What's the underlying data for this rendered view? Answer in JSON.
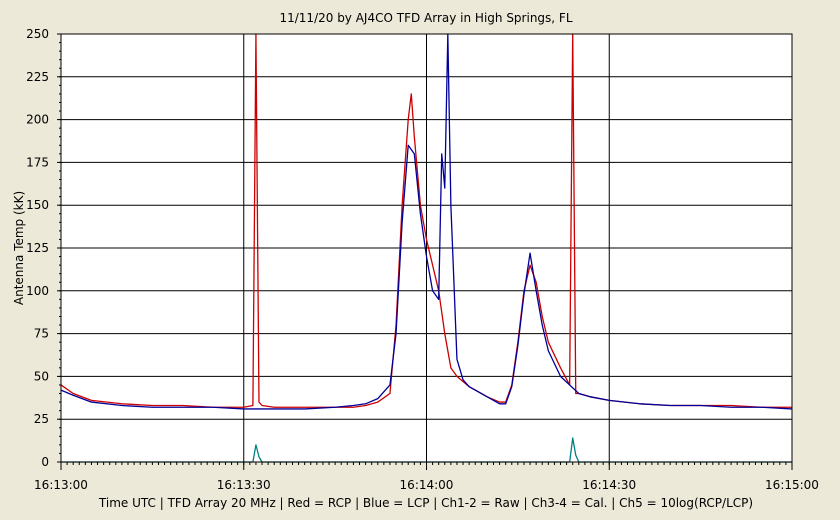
{
  "chart_data": {
    "type": "line",
    "title": "11/11/20  by  AJ4CO TFD Array  in  High Springs, FL",
    "ylabel": "Antenna Temp (kK)",
    "xlabel": "Time UTC | TFD Array 20 MHz | Red = RCP | Blue = LCP | Ch1-2 = Raw | Ch3-4 = Cal. | Ch5 = 10log(RCP/LCP)",
    "xlim": [
      "16:13:00",
      "16:15:00"
    ],
    "ylim": [
      0,
      250
    ],
    "x_ticks": [
      "16:13:00",
      "16:13:30",
      "16:14:00",
      "16:14:30",
      "16:15:00"
    ],
    "y_ticks": [
      "0",
      "25",
      "50",
      "75",
      "100",
      "125",
      "150",
      "175",
      "200",
      "225",
      "250"
    ],
    "grid": true,
    "background_color": "#ffffff",
    "series": [
      {
        "color": "#cc0000",
        "x": [
          "16:13:00",
          "16:13:02",
          "16:13:05",
          "16:13:10",
          "16:13:15",
          "16:13:20",
          "16:13:25",
          "16:13:30",
          "16:13:31.5",
          "16:13:32",
          "16:13:32.5",
          "16:13:33",
          "16:13:35",
          "16:13:40",
          "16:13:45",
          "16:13:48",
          "16:13:50",
          "16:13:52",
          "16:13:54",
          "16:13:55",
          "16:13:56",
          "16:13:57",
          "16:13:57.5",
          "16:13:58",
          "16:13:59",
          "16:14:00",
          "16:14:01",
          "16:14:02",
          "16:14:03",
          "16:14:04",
          "16:14:05",
          "16:14:06",
          "16:14:07",
          "16:14:08",
          "16:14:10",
          "16:14:12",
          "16:14:13",
          "16:14:14",
          "16:14:15",
          "16:14:16",
          "16:14:17",
          "16:14:18",
          "16:14:19",
          "16:14:20",
          "16:14:22",
          "16:14:23.5",
          "16:14:24",
          "16:14:24.5",
          "16:14:25",
          "16:14:27",
          "16:14:30",
          "16:14:35",
          "16:14:40",
          "16:14:45",
          "16:14:50",
          "16:14:55",
          "16:15:00"
        ],
        "values": [
          45,
          40,
          36,
          34,
          33,
          33,
          32,
          32,
          33,
          250,
          35,
          33,
          32,
          32,
          32,
          32,
          33,
          35,
          40,
          80,
          150,
          200,
          215,
          190,
          150,
          130,
          115,
          100,
          75,
          55,
          50,
          47,
          44,
          42,
          38,
          35,
          35,
          45,
          70,
          100,
          115,
          105,
          85,
          70,
          55,
          45,
          250,
          40,
          40,
          38,
          36,
          34,
          33,
          33,
          33,
          32,
          32
        ]
      },
      {
        "color": "#000099",
        "x": [
          "16:13:00",
          "16:13:02",
          "16:13:05",
          "16:13:10",
          "16:13:15",
          "16:13:20",
          "16:13:25",
          "16:13:30",
          "16:13:35",
          "16:13:40",
          "16:13:45",
          "16:13:48",
          "16:13:50",
          "16:13:52",
          "16:13:54",
          "16:13:55",
          "16:13:56",
          "16:13:57",
          "16:13:58",
          "16:13:59",
          "16:14:00",
          "16:14:01",
          "16:14:02",
          "16:14:02.5",
          "16:14:03",
          "16:14:03.5",
          "16:14:04",
          "16:14:05",
          "16:14:06",
          "16:14:07",
          "16:14:08",
          "16:14:10",
          "16:14:12",
          "16:14:13",
          "16:14:14",
          "16:14:15",
          "16:14:16",
          "16:14:17",
          "16:14:18",
          "16:14:19",
          "16:14:20",
          "16:14:22",
          "16:14:25",
          "16:14:27",
          "16:14:30",
          "16:14:35",
          "16:14:40",
          "16:14:45",
          "16:14:50",
          "16:14:55",
          "16:15:00"
        ],
        "values": [
          42,
          39,
          35,
          33,
          32,
          32,
          32,
          31,
          31,
          31,
          32,
          33,
          34,
          37,
          45,
          75,
          140,
          185,
          180,
          145,
          120,
          100,
          95,
          180,
          160,
          250,
          150,
          60,
          48,
          44,
          42,
          38,
          34,
          34,
          44,
          68,
          98,
          122,
          100,
          80,
          65,
          50,
          40,
          38,
          36,
          34,
          33,
          33,
          32,
          32,
          31
        ]
      },
      {
        "color": "#008080",
        "x": [
          "16:13:00",
          "16:13:30",
          "16:13:31.5",
          "16:13:32",
          "16:13:32.5",
          "16:13:33",
          "16:14:20",
          "16:14:23.5",
          "16:14:24",
          "16:14:24.5",
          "16:14:25",
          "16:15:00"
        ],
        "values": [
          0,
          0,
          0,
          10,
          3,
          0,
          0,
          0,
          14,
          4,
          0,
          0
        ]
      }
    ],
    "markers": [
      "16:13:30",
      "16:14:00",
      "16:14:30"
    ],
    "marker_color": "#000000"
  }
}
